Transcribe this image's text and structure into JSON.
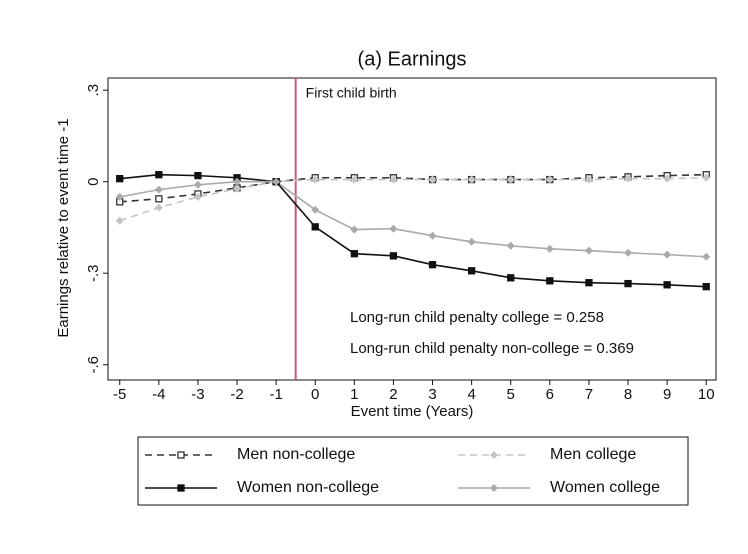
{
  "chart_data": {
    "type": "line",
    "title": "(a) Earnings",
    "x_label": "Event time (Years)",
    "y_label": "Earnings relative to event time -1",
    "x": [
      -5,
      -4,
      -3,
      -2,
      -1,
      0,
      1,
      2,
      3,
      4,
      5,
      6,
      7,
      8,
      9,
      10
    ],
    "xlim": [
      -5.3,
      10.25
    ],
    "xticks": [
      -5,
      -4,
      -3,
      -2,
      -1,
      0,
      1,
      2,
      3,
      4,
      5,
      6,
      7,
      8,
      9,
      10
    ],
    "ylim": [
      -0.65,
      0.34
    ],
    "yticks": [
      {
        "value": -0.6,
        "label": "-.6"
      },
      {
        "value": -0.3,
        "label": "-.3"
      },
      0,
      {
        "value": 0.3,
        "label": ".3"
      }
    ],
    "vline": {
      "x": -0.5,
      "label": "First child birth",
      "color": "#c8577a"
    },
    "annotations": [
      {
        "text": "Long-run child penalty college = 0.258",
        "color": "#999999"
      },
      {
        "text": "Long-run child penalty non-college = 0.369",
        "color": "#111111"
      }
    ],
    "series": [
      {
        "name": "Men non-college",
        "color": "#333333",
        "dash": true,
        "marker": "square-hollow",
        "values": [
          -0.066,
          -0.056,
          -0.04,
          -0.02,
          0,
          0.013,
          0.013,
          0.013,
          0.007,
          0.007,
          0.007,
          0.007,
          0.013,
          0.016,
          0.02,
          0.023
        ]
      },
      {
        "name": "Men college",
        "color": "#c4c4c4",
        "dash": true,
        "marker": "diamond",
        "values": [
          -0.128,
          -0.085,
          -0.05,
          -0.023,
          0,
          0.007,
          0.007,
          0.007,
          0.007,
          0.007,
          0.007,
          0.007,
          0.007,
          0.01,
          0.01,
          0.013
        ]
      },
      {
        "name": "Women non-college",
        "color": "#111111",
        "dash": false,
        "marker": "square",
        "values": [
          0.01,
          0.023,
          0.02,
          0.013,
          0,
          -0.148,
          -0.236,
          -0.243,
          -0.272,
          -0.292,
          -0.315,
          -0.325,
          -0.331,
          -0.334,
          -0.338,
          -0.344
        ]
      },
      {
        "name": "Women college",
        "color": "#aaaaaa",
        "dash": false,
        "marker": "diamond",
        "values": [
          -0.05,
          -0.026,
          -0.01,
          0,
          0,
          -0.092,
          -0.157,
          -0.154,
          -0.177,
          -0.197,
          -0.21,
          -0.22,
          -0.226,
          -0.233,
          -0.239,
          -0.246
        ]
      }
    ]
  }
}
